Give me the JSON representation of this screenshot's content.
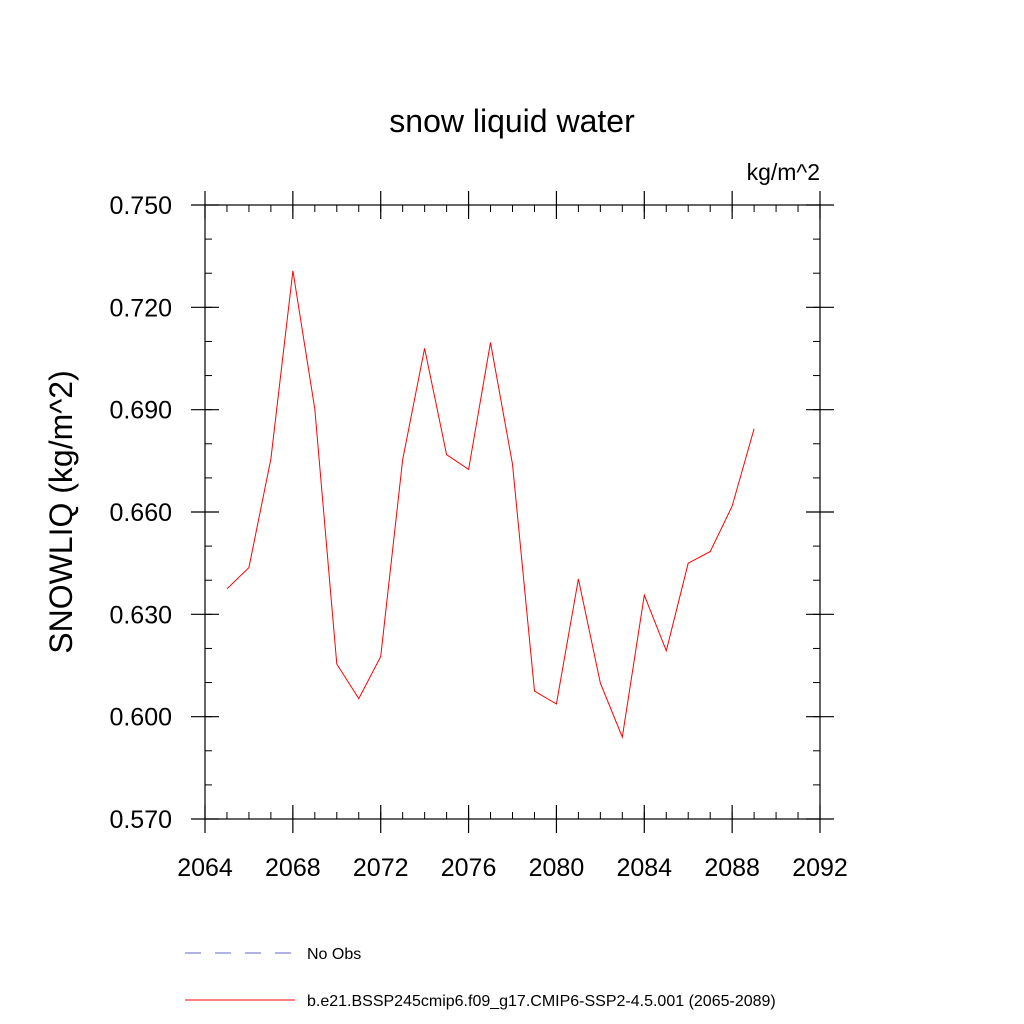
{
  "chart_data": {
    "type": "line",
    "title": "snow liquid water",
    "units_label": "kg/m^2",
    "ylabel": "SNOWLIQ  (kg/m^2)",
    "xlabel": "",
    "xlim": [
      2064,
      2092
    ],
    "ylim": [
      0.57,
      0.75
    ],
    "x_ticks": [
      2064,
      2068,
      2072,
      2076,
      2080,
      2084,
      2088,
      2092
    ],
    "x_tick_labels": [
      "2064",
      "2068",
      "2072",
      "2076",
      "2080",
      "2084",
      "2088",
      "2092"
    ],
    "y_ticks": [
      0.57,
      0.6,
      0.63,
      0.66,
      0.69,
      0.72,
      0.75
    ],
    "y_tick_labels": [
      "0.570",
      "0.600",
      "0.630",
      "0.660",
      "0.690",
      "0.720",
      "0.750"
    ],
    "x_minor_step": 1,
    "y_minor_step": 0.01,
    "grid": false,
    "series": [
      {
        "name": "b.e21.BSSP245cmip6.f09_g17.CMIP6-SSP2-4.5.001 (2065-2089)",
        "color": "#ff0000",
        "style": "solid",
        "x": [
          2065,
          2066,
          2067,
          2068,
          2069,
          2070,
          2071,
          2072,
          2073,
          2074,
          2075,
          2076,
          2077,
          2078,
          2079,
          2080,
          2081,
          2082,
          2083,
          2084,
          2085,
          2086,
          2087,
          2088,
          2089
        ],
        "values": [
          0.6375,
          0.6437,
          0.6756,
          0.7307,
          0.6902,
          0.6154,
          0.6053,
          0.6176,
          0.6754,
          0.708,
          0.6768,
          0.6725,
          0.7097,
          0.674,
          0.6075,
          0.6037,
          0.6404,
          0.6098,
          0.594,
          0.6356,
          0.6193,
          0.645,
          0.6484,
          0.6617,
          0.6844
        ]
      }
    ],
    "legend": {
      "placement": "bottom",
      "entries": [
        {
          "label": "No Obs",
          "color": "#6666cc",
          "style": "dashed"
        },
        {
          "label": "b.e21.BSSP245cmip6.f09_g17.CMIP6-SSP2-4.5.001 (2065-2089)",
          "color": "#ff0000",
          "style": "solid"
        }
      ]
    }
  }
}
